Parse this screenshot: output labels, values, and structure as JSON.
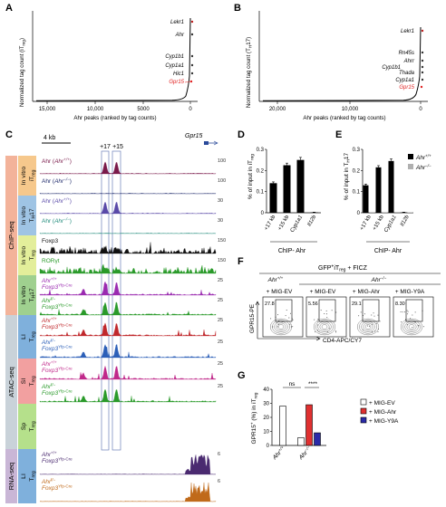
{
  "panels": {
    "A": {
      "letter": "A",
      "ylabel": "Normalized tag count (iT",
      "ylabel_sub": "reg",
      "ylabel_end": ")",
      "xlabel": "Ahr peaks (ranked by tag counts)",
      "xticks": [
        "15,000",
        "10,000",
        "5000",
        "0"
      ],
      "genes": [
        "Lekr1",
        "Ahr",
        "Cyp1b1",
        "Cyp1a1",
        "Hic1",
        "Gpr15"
      ]
    },
    "B": {
      "letter": "B",
      "ylabel": "Normalized tag count (T",
      "ylabel_sub": "H",
      "ylabel_end": "17)",
      "xlabel": "Ahr peaks (ranked by tag counts)",
      "xticks": [
        "20,000",
        "10,000",
        "0"
      ],
      "genes": [
        "Lekr1",
        "Rn45s",
        "Ahrr",
        "Cyp1b1",
        "Thada",
        "Cyp1a1",
        "Gpr15"
      ]
    },
    "C": {
      "letter": "C",
      "scalebar": "4 kb",
      "gene": "Gpr15",
      "markers": [
        "+17",
        "+15"
      ],
      "sidebar": [
        "ChIP-seq",
        "ATAC-seq",
        "RNA-seq"
      ],
      "groups": [
        {
          "l1": "In vitro",
          "l2": "iT",
          "l2sub": "reg"
        },
        {
          "l1": "In vitro",
          "l2": "T",
          "l2sub": "H",
          "l2end": "17"
        },
        {
          "l1": "In vitro",
          "l2": "T",
          "l2sub": "reg"
        },
        {
          "l1": "In vitro",
          "l2": "T",
          "l2sub": "H",
          "l2end": "17"
        },
        {
          "l1": "LI",
          "l2": "T",
          "l2sub": "reg"
        },
        {
          "l1": "SI",
          "l2": "T",
          "l2sub": "reg"
        },
        {
          "l1": "Sp",
          "l2": "T",
          "l2sub": "reg"
        },
        {
          "l1": "LI",
          "l2": "T",
          "l2sub": "reg"
        }
      ],
      "tracks": [
        {
          "label": "Ahr (",
          "geno": "Ahr",
          "sup": "+/+",
          "end": ")",
          "color": "#7a1a4a",
          "scale": "100",
          "kind": "ahr"
        },
        {
          "label": "Ahr (",
          "geno": "Ahr",
          "sup": "−/−",
          "end": ")",
          "color": "#1f2a6b",
          "scale": "100",
          "kind": "flat"
        },
        {
          "label": "Ahr (",
          "geno": "Ahr",
          "sup": "+/+",
          "end": ")",
          "color": "#5a4aa8",
          "scale": "30",
          "kind": "ahr"
        },
        {
          "label": "Ahr (",
          "geno": "Ahr",
          "sup": "−/−",
          "end": ")",
          "color": "#1f8a7a",
          "scale": "30",
          "kind": "flat"
        },
        {
          "label": "Foxp3",
          "color": "#111111",
          "scale": "150",
          "kind": "noisy"
        },
        {
          "label": "RORγt",
          "color": "#2a9a2a",
          "scale": "150",
          "kind": "noisy"
        },
        {
          "label": "Ahr",
          "sup": "+/+",
          "line2": "Foxp3",
          "sup2": "Yfp-Cre",
          "color": "#9a2ab0",
          "scale": "25",
          "kind": "atac"
        },
        {
          "label": "Ahr",
          "sup": "f/−",
          "line2": "Foxp3",
          "sup2": "Yfp-Cre",
          "color": "#2a9a2a",
          "scale": "25",
          "kind": "atac"
        },
        {
          "label": "Ahr",
          "sup": "+/+",
          "line2": "Foxp3",
          "sup2": "Yfp-Cre",
          "color": "#c0282c",
          "scale": "25",
          "kind": "atac"
        },
        {
          "label": "Ahr",
          "sup": "f/−",
          "line2": "Foxp3",
          "sup2": "Yfp-Cre",
          "color": "#2c5fb8",
          "scale": "25",
          "kind": "atac"
        },
        {
          "label": "Ahr",
          "sup": "+/+",
          "line2": "Foxp3",
          "sup2": "Yfp-Cre",
          "color": "#c0288a",
          "scale": "25",
          "kind": "atac"
        },
        {
          "label": "Ahr",
          "sup": "f/−",
          "line2": "Foxp3",
          "sup2": "Yfp-Cre",
          "color": "#2a9a2a",
          "scale": "25",
          "kind": "atac"
        },
        {
          "label": "Ahr",
          "sup": "+/+",
          "line2": "Foxp3",
          "sup2": "Yfp-Cre",
          "color": "#4a2a70",
          "scale": "6",
          "kind": "rna"
        },
        {
          "label": "Ahr",
          "sup": "f/−",
          "line2": "Foxp3",
          "sup2": "Yfp-Cre",
          "color": "#c06a1a",
          "scale": "6",
          "kind": "rna"
        }
      ]
    },
    "D": {
      "letter": "D",
      "ylabel": "% of input in iT",
      "ylabel_sub": "reg",
      "xlabel": "ChIP- Ahr",
      "yticks": [
        "0",
        "0.1",
        "0.2",
        "0.3"
      ]
    },
    "E": {
      "letter": "E",
      "ylabel": "% of input in T",
      "ylabel_sub": "H",
      "ylabel_end": "17",
      "xlabel": "ChIP- Ahr",
      "yticks": [
        "0",
        "0.1",
        "0.2",
        "0.3"
      ],
      "legend": [
        {
          "label": "Ahr",
          "sup": "+/+",
          "color": "#000000"
        },
        {
          "label": "Ahr",
          "sup": "−/−",
          "color": "#b0b0b0"
        }
      ]
    },
    "F": {
      "letter": "F",
      "title": "GFP",
      "title_sup": "+",
      "title_mid": "iT",
      "title_sub": "reg",
      "title_end": " + FICZ",
      "geno_wt": "Ahr",
      "geno_wt_sup": "+/+",
      "geno_ko": "Ahr",
      "geno_ko_sup": "−/−",
      "yaxis": "GPR15-PE",
      "xaxis": "CD4-APC/CY7",
      "conditions": [
        "+ MIG-EV",
        "+ MIG-EV",
        "+ MIG-Ahr",
        "+ MIG-Y9A"
      ],
      "percents": [
        "27.8",
        "5.56",
        "29.1",
        "8.30"
      ]
    },
    "G": {
      "letter": "G",
      "ylabel": "GPR15",
      "ylabel_sup": "+",
      "ylabel_mid": " (%) in iT",
      "ylabel_sub": "reg",
      "yticks": [
        "0",
        "10",
        "20",
        "30",
        "40"
      ],
      "xcats": [
        {
          "label": "Ahr",
          "sup": "+/+"
        },
        {
          "label": "Ahr",
          "sup": "−/−"
        }
      ],
      "sig": [
        "ns",
        "****"
      ],
      "legend": [
        {
          "label": "+ MIG-EV",
          "color": "#ffffff"
        },
        {
          "label": "+ MIG-Ahr",
          "color": "#e03030"
        },
        {
          "label": "+ MIG-Y9A",
          "color": "#2a2aa8"
        }
      ]
    }
  },
  "chart_data": [
    {
      "panel": "D",
      "type": "bar",
      "categories": [
        "+17 kb",
        "+15 kb",
        "Cyp1a1",
        "Il12b"
      ],
      "series": [
        {
          "values": [
            0.14,
            0.225,
            0.25,
            0.002
          ]
        }
      ],
      "errors": [
        0.006,
        0.01,
        0.012,
        0.001
      ],
      "xlabel": "ChIP- Ahr",
      "ylabel": "% of input in iTreg",
      "ylim": [
        0,
        0.3
      ]
    },
    {
      "panel": "E",
      "type": "bar",
      "categories": [
        "+17 kb",
        "+15 kb",
        "Cyp1a1",
        "Il12b"
      ],
      "series": [
        {
          "name": "Ahr+/+",
          "values": [
            0.13,
            0.215,
            0.245,
            0.002
          ]
        },
        {
          "name": "Ahr−/−",
          "values": [
            0.003,
            0.003,
            0.004,
            0.002
          ]
        }
      ],
      "errors": [
        0.006,
        0.008,
        0.01,
        0.001
      ],
      "xlabel": "ChIP- Ahr",
      "ylabel": "% of input in TH17",
      "ylim": [
        0,
        0.3
      ]
    },
    {
      "panel": "G",
      "type": "bar",
      "categories": [
        "Ahr+/+",
        "Ahr−/−"
      ],
      "series": [
        {
          "name": "+ MIG-EV",
          "values": [
            28,
            5.5
          ]
        },
        {
          "name": "+ MIG-Ahr",
          "values": [
            null,
            29
          ]
        },
        {
          "name": "+ MIG-Y9A",
          "values": [
            null,
            9
          ]
        }
      ],
      "ylim": [
        0,
        40
      ]
    }
  ]
}
